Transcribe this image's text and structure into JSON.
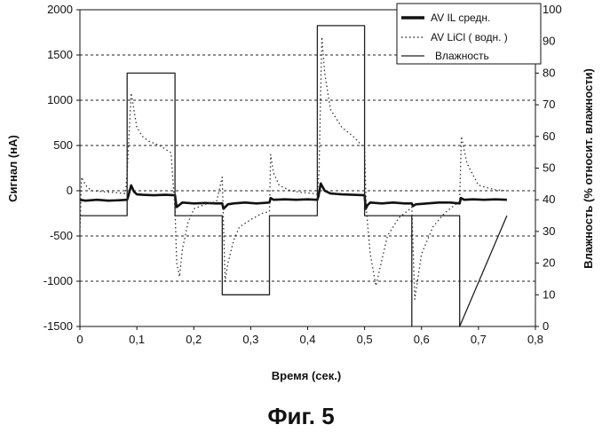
{
  "figure": {
    "caption": "Фиг. 5"
  },
  "chart_data": {
    "type": "line",
    "xlabel": "Время (сек.)",
    "ylabel_left": "Сигнал (нА)",
    "ylabel_right": "Влажность (% относит. влажности)",
    "xlim": [
      0,
      0.8
    ],
    "ylim_left": [
      -1500,
      2000
    ],
    "ylim_right": [
      0,
      100
    ],
    "x_ticks": [
      "0",
      "0,1",
      "0,2",
      "0,3",
      "0,4",
      "0,5",
      "0,6",
      "0,7",
      "0,8"
    ],
    "y_left_ticks": [
      "2000",
      "1500",
      "1000",
      "500",
      "0",
      "-500",
      "-1000",
      "-1500"
    ],
    "y_right_ticks": [
      "100",
      "90",
      "80",
      "70",
      "60",
      "50",
      "40",
      "30",
      "20",
      "10",
      "0"
    ],
    "grid": "horizontal dashed",
    "legend_position": "top-right",
    "series": [
      {
        "name": "AV IL средн.",
        "axis": "left",
        "style": "thick",
        "color": "#111111",
        "x": [
          0,
          0.01,
          0.03,
          0.05,
          0.07,
          0.083,
          0.085,
          0.09,
          0.095,
          0.1,
          0.11,
          0.13,
          0.15,
          0.167,
          0.169,
          0.17,
          0.18,
          0.2,
          0.22,
          0.24,
          0.25,
          0.252,
          0.26,
          0.27,
          0.29,
          0.31,
          0.333,
          0.335,
          0.34,
          0.36,
          0.38,
          0.4,
          0.417,
          0.419,
          0.423,
          0.43,
          0.44,
          0.46,
          0.48,
          0.5,
          0.502,
          0.505,
          0.51,
          0.53,
          0.55,
          0.57,
          0.583,
          0.585,
          0.59,
          0.61,
          0.63,
          0.65,
          0.667,
          0.669,
          0.675,
          0.69,
          0.71,
          0.73,
          0.75
        ],
        "y": [
          -100,
          -110,
          -100,
          -110,
          -105,
          -100,
          -60,
          60,
          -10,
          -40,
          -45,
          -50,
          -45,
          -50,
          -150,
          -180,
          -130,
          -140,
          -135,
          -140,
          -140,
          -200,
          -150,
          -140,
          -130,
          -140,
          -130,
          -80,
          -100,
          -95,
          -100,
          -95,
          -100,
          -60,
          80,
          0,
          -30,
          -40,
          -45,
          -50,
          -200,
          -160,
          -130,
          -140,
          -130,
          -140,
          -140,
          -170,
          -150,
          -140,
          -130,
          -130,
          -140,
          -80,
          -100,
          -95,
          -100,
          -95,
          -100
        ]
      },
      {
        "name": "AV LiCl ( водн. )",
        "axis": "left",
        "style": "dotted",
        "color": "#333333",
        "x": [
          0,
          0.003,
          0.01,
          0.02,
          0.04,
          0.06,
          0.08,
          0.083,
          0.09,
          0.1,
          0.11,
          0.12,
          0.14,
          0.16,
          0.167,
          0.17,
          0.175,
          0.18,
          0.19,
          0.2,
          0.22,
          0.24,
          0.25,
          0.255,
          0.26,
          0.27,
          0.28,
          0.3,
          0.32,
          0.333,
          0.335,
          0.34,
          0.35,
          0.37,
          0.39,
          0.41,
          0.417,
          0.42,
          0.425,
          0.43,
          0.44,
          0.46,
          0.48,
          0.5,
          0.503,
          0.51,
          0.52,
          0.54,
          0.56,
          0.58,
          0.583,
          0.588,
          0.6,
          0.62,
          0.64,
          0.66,
          0.667,
          0.67,
          0.68,
          0.7,
          0.73,
          0.75
        ],
        "y": [
          -450,
          150,
          60,
          0,
          -10,
          -20,
          -30,
          200,
          1080,
          700,
          600,
          550,
          500,
          420,
          -200,
          -800,
          -950,
          -650,
          -350,
          -200,
          -150,
          -120,
          150,
          -1000,
          -800,
          -550,
          -400,
          -320,
          -250,
          -230,
          400,
          200,
          60,
          0,
          -20,
          -30,
          -40,
          200,
          1700,
          1300,
          900,
          700,
          600,
          470,
          -200,
          -700,
          -1050,
          -500,
          -300,
          -200,
          -180,
          -1200,
          -700,
          -400,
          -250,
          -150,
          -120,
          600,
          300,
          60,
          10,
          0
        ]
      },
      {
        "name": "Влажность",
        "axis": "right",
        "style": "thin",
        "color": "#222222",
        "x": [
          0,
          0.083,
          0.083,
          0.167,
          0.167,
          0.25,
          0.25,
          0.333,
          0.333,
          0.417,
          0.417,
          0.5,
          0.5,
          0.583,
          0.583,
          0.583,
          0.59,
          0.655,
          0.667,
          0.667,
          0.75
        ],
        "y": [
          35,
          35,
          80,
          80,
          35,
          35,
          10,
          10,
          35,
          35,
          95,
          95,
          35,
          35,
          0,
          35,
          35,
          35,
          35,
          0,
          35
        ]
      }
    ]
  }
}
